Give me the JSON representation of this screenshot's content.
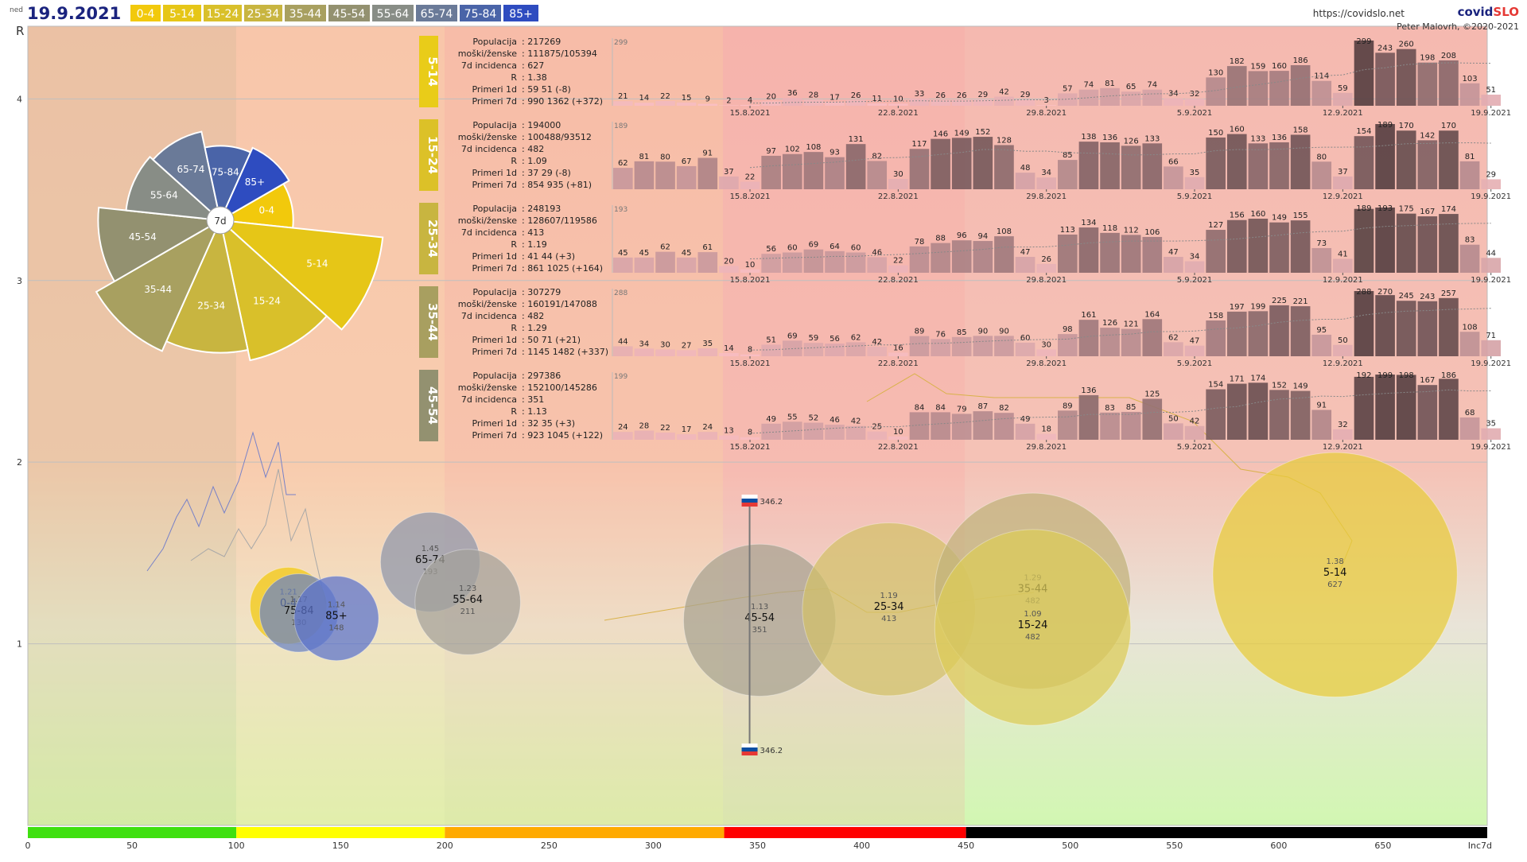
{
  "header": {
    "day": "ned",
    "date": "19.9.2021",
    "url": "https://covidslo.net",
    "brand_a": "covid",
    "brand_b": "SLO",
    "author": "Peter Malovrh, ©2020-2021",
    "age_legend": [
      {
        "label": "0-4",
        "color": "#f2c90c"
      },
      {
        "label": "5-14",
        "color": "#e6c617"
      },
      {
        "label": "15-24",
        "color": "#d9c02a"
      },
      {
        "label": "25-34",
        "color": "#c8b540"
      },
      {
        "label": "35-44",
        "color": "#a8a060"
      },
      {
        "label": "45-54",
        "color": "#939170"
      },
      {
        "label": "55-64",
        "color": "#888d86"
      },
      {
        "label": "65-74",
        "color": "#6a7a98"
      },
      {
        "label": "75-84",
        "color": "#4a64a8"
      },
      {
        "label": "85+",
        "color": "#2e4cc0"
      }
    ]
  },
  "chart_data": {
    "type": "scatter",
    "xlabel": "Inc7d",
    "ylabel": "R",
    "xlim": [
      0,
      700
    ],
    "ylim": [
      0,
      4.4
    ],
    "xticks": [
      0,
      50,
      100,
      150,
      200,
      250,
      300,
      350,
      400,
      450,
      500,
      550,
      600,
      650
    ],
    "yticks": [
      1,
      2,
      3,
      4
    ],
    "colors": {
      "green": "#3fe010",
      "yellow": "#ffff00",
      "orange": "#ffaa00",
      "red": "#ff0000",
      "black": "#000000",
      "trail": "#d9b24a"
    },
    "bands": [
      {
        "from": 0,
        "to": 100,
        "color": "#3fe010"
      },
      {
        "from": 100,
        "to": 200,
        "color": "#ffff00"
      },
      {
        "from": 200,
        "to": 334,
        "color": "#ffaa00"
      },
      {
        "from": 334,
        "to": 450,
        "color": "#ff0000"
      },
      {
        "from": 450,
        "to": 700,
        "color": "#000000"
      }
    ],
    "national": {
      "inc7d": 346.2,
      "label": "346.2"
    },
    "bubbles": [
      {
        "group": "0-4",
        "r_value": 1.21,
        "r_label": "1.21",
        "inc7d": 125,
        "inc_label": "",
        "color": "#f2c90c"
      },
      {
        "group": "75-84",
        "r_value": 1.17,
        "r_label": "1.17",
        "inc7d": 130,
        "inc_label": "130",
        "color": "#6a82c4"
      },
      {
        "group": "85+",
        "r_value": 1.14,
        "r_label": "1.14",
        "inc7d": 148,
        "inc_label": "148",
        "color": "#5a72cc"
      },
      {
        "group": "65-74",
        "r_value": 1.45,
        "r_label": "1.45",
        "inc7d": 193,
        "inc_label": "193",
        "color": "#8d96aa"
      },
      {
        "group": "55-64",
        "r_value": 1.23,
        "r_label": "1.23",
        "inc7d": 211,
        "inc_label": "211",
        "color": "#a4a19a"
      },
      {
        "group": "45-54",
        "r_value": 1.13,
        "r_label": "1.13",
        "inc7d": 351,
        "inc_label": "351",
        "color": "#a8a290"
      },
      {
        "group": "25-34",
        "r_value": 1.19,
        "r_label": "1.19",
        "inc7d": 413,
        "inc_label": "413",
        "color": "#d2c068"
      },
      {
        "group": "35-44",
        "r_value": 1.29,
        "r_label": "1.29",
        "inc7d": 482,
        "inc_label": "482",
        "color": "#c0b27a"
      },
      {
        "group": "15-24",
        "r_value": 1.09,
        "r_label": "1.09",
        "inc7d": 482,
        "inc_label": "482",
        "color": "#dccc58"
      },
      {
        "group": "5-14",
        "r_value": 1.38,
        "r_label": "1.38",
        "inc7d": 627,
        "inc_label": "627",
        "color": "#e8cc3a"
      }
    ],
    "rose": {
      "center_label": "7d",
      "sectors": [
        {
          "label": "0-4",
          "value": 125
        },
        {
          "label": "5-14",
          "value": 627
        },
        {
          "label": "15-24",
          "value": 482
        },
        {
          "label": "25-34",
          "value": 413
        },
        {
          "label": "35-44",
          "value": 482
        },
        {
          "label": "45-54",
          "value": 351
        },
        {
          "label": "55-64",
          "value": 211
        },
        {
          "label": "65-74",
          "value": 193
        },
        {
          "label": "75-84",
          "value": 130
        },
        {
          "label": "85+",
          "value": 148
        }
      ]
    },
    "panel_dates": [
      "15.8.2021",
      "22.8.2021",
      "29.8.2021",
      "5.9.2021",
      "12.9.2021",
      "19.9.2021"
    ],
    "panels": [
      {
        "group": "5-14",
        "tag_color": "#e9cc19",
        "max_label": "299",
        "stats": [
          [
            "Populacija",
            "217269"
          ],
          [
            "moški/ženske",
            "111875/105394"
          ],
          [
            "7d incidenca",
            "627"
          ],
          [
            "R",
            "1.38"
          ],
          [
            "Primeri 1d",
            "59 51 (-8)"
          ],
          [
            "Primeri 7d",
            "990 1362 (+372)"
          ]
        ],
        "values": [
          21,
          14,
          22,
          15,
          9,
          2,
          4,
          20,
          36,
          28,
          17,
          26,
          11,
          10,
          33,
          26,
          26,
          29,
          42,
          29,
          3,
          57,
          74,
          81,
          65,
          74,
          34,
          32,
          130,
          182,
          159,
          160,
          186,
          114,
          59,
          299,
          243,
          260,
          198,
          208,
          103,
          51
        ]
      },
      {
        "group": "15-24",
        "tag_color": "#dcc128",
        "max_label": "189",
        "stats": [
          [
            "Populacija",
            "194000"
          ],
          [
            "moški/ženske",
            "100488/93512"
          ],
          [
            "7d incidenca",
            "482"
          ],
          [
            "R",
            "1.09"
          ],
          [
            "Primeri 1d",
            "37 29 (-8)"
          ],
          [
            "Primeri 7d",
            "854 935 (+81)"
          ]
        ],
        "values": [
          62,
          81,
          80,
          67,
          91,
          37,
          22,
          97,
          102,
          108,
          93,
          131,
          82,
          30,
          117,
          146,
          149,
          152,
          128,
          48,
          34,
          85,
          138,
          136,
          126,
          133,
          66,
          35,
          150,
          160,
          133,
          136,
          158,
          80,
          37,
          154,
          189,
          170,
          142,
          170,
          81,
          29
        ]
      },
      {
        "group": "25-34",
        "tag_color": "#c8b540",
        "max_label": "193",
        "stats": [
          [
            "Populacija",
            "248193"
          ],
          [
            "moški/ženske",
            "128607/119586"
          ],
          [
            "7d incidenca",
            "413"
          ],
          [
            "R",
            "1.19"
          ],
          [
            "Primeri 1d",
            "41 44 (+3)"
          ],
          [
            "Primeri 7d",
            "861 1025 (+164)"
          ]
        ],
        "values": [
          45,
          45,
          62,
          45,
          61,
          20,
          10,
          56,
          60,
          69,
          64,
          60,
          46,
          22,
          78,
          88,
          96,
          94,
          108,
          47,
          26,
          113,
          134,
          118,
          112,
          106,
          47,
          34,
          127,
          156,
          160,
          149,
          155,
          73,
          41,
          189,
          193,
          175,
          167,
          174,
          83,
          44
        ]
      },
      {
        "group": "35-44",
        "tag_color": "#a89f60",
        "max_label": "288",
        "stats": [
          [
            "Populacija",
            "307279"
          ],
          [
            "moški/ženske",
            "160191/147088"
          ],
          [
            "7d incidenca",
            "482"
          ],
          [
            "R",
            "1.29"
          ],
          [
            "Primeri 1d",
            "50 71 (+21)"
          ],
          [
            "Primeri 7d",
            "1145 1482 (+337)"
          ]
        ],
        "values": [
          44,
          34,
          30,
          27,
          35,
          14,
          8,
          51,
          69,
          59,
          56,
          62,
          42,
          16,
          89,
          76,
          85,
          90,
          90,
          60,
          30,
          98,
          161,
          126,
          121,
          164,
          62,
          47,
          158,
          197,
          199,
          225,
          221,
          95,
          50,
          288,
          270,
          245,
          243,
          257,
          108,
          71
        ]
      },
      {
        "group": "45-54",
        "tag_color": "#939170",
        "max_label": "199",
        "stats": [
          [
            "Populacija",
            "297386"
          ],
          [
            "moški/ženske",
            "152100/145286"
          ],
          [
            "7d incidenca",
            "351"
          ],
          [
            "R",
            "1.13"
          ],
          [
            "Primeri 1d",
            "32 35 (+3)"
          ],
          [
            "Primeri 7d",
            "923 1045 (+122)"
          ]
        ],
        "values": [
          24,
          28,
          22,
          17,
          24,
          13,
          8,
          49,
          55,
          52,
          46,
          42,
          25,
          10,
          84,
          84,
          79,
          87,
          82,
          49,
          18,
          89,
          136,
          83,
          85,
          125,
          50,
          42,
          154,
          171,
          174,
          152,
          149,
          91,
          32,
          192,
          199,
          198,
          167,
          186,
          68,
          35
        ]
      }
    ]
  }
}
